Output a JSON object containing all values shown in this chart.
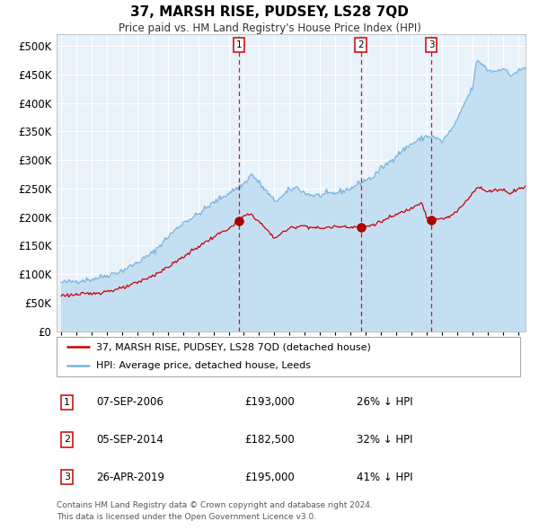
{
  "title": "37, MARSH RISE, PUDSEY, LS28 7QD",
  "subtitle": "Price paid vs. HM Land Registry's House Price Index (HPI)",
  "legend_line1": "37, MARSH RISE, PUDSEY, LS28 7QD (detached house)",
  "legend_line2": "HPI: Average price, detached house, Leeds",
  "footer1": "Contains HM Land Registry data © Crown copyright and database right 2024.",
  "footer2": "This data is licensed under the Open Government Licence v3.0.",
  "sale_events": [
    {
      "num": 1,
      "date": "07-SEP-2006",
      "price": "£193,000",
      "hpi_pct": "26% ↓ HPI"
    },
    {
      "num": 2,
      "date": "05-SEP-2014",
      "price": "£182,500",
      "hpi_pct": "32% ↓ HPI"
    },
    {
      "num": 3,
      "date": "26-APR-2019",
      "price": "£195,000",
      "hpi_pct": "41% ↓ HPI"
    }
  ],
  "sale_dates_decimal": [
    2006.68,
    2014.68,
    2019.32
  ],
  "sale_prices": [
    193000,
    182500,
    195000
  ],
  "hpi_color": "#7ab4df",
  "hpi_fill_color": "#c5dff2",
  "price_color": "#cc0000",
  "vline_color": "#cc0000",
  "dot_color": "#aa0000",
  "bg_color": "#e8f2fb",
  "grid_color": "#ffffff",
  "box_border_color": "#cc0000",
  "ylim_max": 520000,
  "yticks": [
    0,
    50000,
    100000,
    150000,
    200000,
    250000,
    300000,
    350000,
    400000,
    450000,
    500000
  ],
  "xlim_start": 1994.7,
  "xlim_end": 2025.5,
  "hpi_anchors": [
    [
      1995.0,
      85000
    ],
    [
      1996.0,
      88000
    ],
    [
      1997.0,
      91000
    ],
    [
      1998.0,
      98000
    ],
    [
      1999.0,
      106000
    ],
    [
      2000.0,
      120000
    ],
    [
      2001.0,
      137000
    ],
    [
      2002.0,
      165000
    ],
    [
      2003.0,
      190000
    ],
    [
      2004.0,
      205000
    ],
    [
      2005.0,
      225000
    ],
    [
      2006.0,
      242000
    ],
    [
      2007.0,
      258000
    ],
    [
      2007.5,
      275000
    ],
    [
      2008.0,
      260000
    ],
    [
      2009.0,
      228000
    ],
    [
      2009.5,
      235000
    ],
    [
      2010.0,
      248000
    ],
    [
      2010.5,
      252000
    ],
    [
      2011.0,
      242000
    ],
    [
      2011.5,
      238000
    ],
    [
      2012.0,
      238000
    ],
    [
      2012.5,
      240000
    ],
    [
      2013.0,
      242000
    ],
    [
      2013.5,
      246000
    ],
    [
      2014.0,
      250000
    ],
    [
      2014.5,
      258000
    ],
    [
      2015.0,
      265000
    ],
    [
      2015.5,
      270000
    ],
    [
      2016.0,
      285000
    ],
    [
      2016.5,
      295000
    ],
    [
      2017.0,
      308000
    ],
    [
      2017.5,
      318000
    ],
    [
      2018.0,
      328000
    ],
    [
      2018.5,
      335000
    ],
    [
      2019.0,
      342000
    ],
    [
      2019.5,
      340000
    ],
    [
      2020.0,
      332000
    ],
    [
      2020.5,
      348000
    ],
    [
      2021.0,
      368000
    ],
    [
      2021.5,
      400000
    ],
    [
      2022.0,
      425000
    ],
    [
      2022.3,
      473000
    ],
    [
      2022.6,
      470000
    ],
    [
      2023.0,
      458000
    ],
    [
      2023.5,
      455000
    ],
    [
      2024.0,
      462000
    ],
    [
      2024.5,
      448000
    ],
    [
      2025.0,
      455000
    ],
    [
      2025.5,
      462000
    ]
  ],
  "prop_anchors": [
    [
      1995.0,
      63000
    ],
    [
      1996.0,
      64000
    ],
    [
      1997.0,
      66000
    ],
    [
      1998.0,
      70000
    ],
    [
      1999.0,
      75000
    ],
    [
      2000.0,
      85000
    ],
    [
      2001.0,
      97000
    ],
    [
      2002.0,
      112000
    ],
    [
      2003.0,
      130000
    ],
    [
      2004.0,
      148000
    ],
    [
      2005.0,
      165000
    ],
    [
      2006.0,
      180000
    ],
    [
      2006.5,
      188000
    ],
    [
      2006.68,
      193000
    ],
    [
      2007.0,
      202000
    ],
    [
      2007.5,
      205000
    ],
    [
      2008.0,
      192000
    ],
    [
      2008.5,
      178000
    ],
    [
      2009.0,
      163000
    ],
    [
      2009.5,
      172000
    ],
    [
      2010.0,
      180000
    ],
    [
      2010.5,
      184000
    ],
    [
      2011.0,
      185000
    ],
    [
      2011.5,
      182000
    ],
    [
      2012.0,
      180000
    ],
    [
      2012.5,
      182000
    ],
    [
      2013.0,
      183000
    ],
    [
      2013.5,
      184000
    ],
    [
      2014.0,
      183000
    ],
    [
      2014.5,
      183000
    ],
    [
      2014.68,
      182500
    ],
    [
      2015.0,
      183000
    ],
    [
      2015.5,
      187000
    ],
    [
      2016.0,
      192000
    ],
    [
      2016.5,
      198000
    ],
    [
      2017.0,
      204000
    ],
    [
      2017.5,
      210000
    ],
    [
      2018.0,
      215000
    ],
    [
      2018.3,
      222000
    ],
    [
      2018.7,
      226000
    ],
    [
      2019.0,
      200000
    ],
    [
      2019.32,
      195000
    ],
    [
      2019.6,
      194000
    ],
    [
      2019.8,
      196000
    ],
    [
      2020.0,
      197000
    ],
    [
      2020.5,
      200000
    ],
    [
      2021.0,
      210000
    ],
    [
      2021.5,
      225000
    ],
    [
      2022.0,
      242000
    ],
    [
      2022.3,
      252000
    ],
    [
      2022.6,
      250000
    ],
    [
      2023.0,
      244000
    ],
    [
      2023.5,
      248000
    ],
    [
      2024.0,
      248000
    ],
    [
      2024.5,
      242000
    ],
    [
      2025.0,
      250000
    ],
    [
      2025.5,
      252000
    ]
  ]
}
